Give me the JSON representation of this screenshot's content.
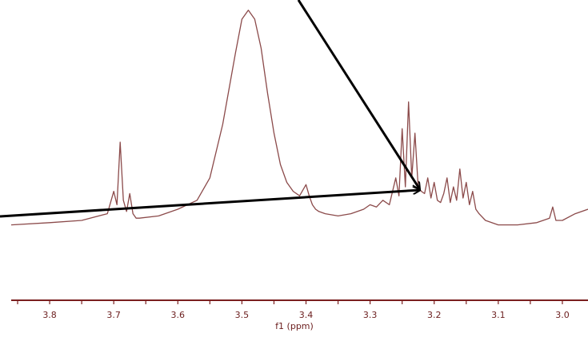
{
  "chart_data": {
    "type": "line",
    "title": "",
    "xlabel": "f1 (ppm)",
    "ylabel": "",
    "x_reversed": true,
    "xlim": [
      3.86,
      2.96
    ],
    "ylim": [
      0,
      100
    ],
    "grid": false,
    "x_ticks": [
      "3.8",
      "3.7",
      "3.6",
      "3.5",
      "3.4",
      "3.3",
      "3.2",
      "3.1",
      "3.0"
    ],
    "x_tick_values": [
      3.8,
      3.7,
      3.6,
      3.5,
      3.4,
      3.3,
      3.2,
      3.1,
      3.0
    ],
    "colors": {
      "spectrum": "#8b4a4a",
      "axis": "#7a1f1f",
      "arrows": "#000000"
    },
    "series": [
      {
        "values": {
          "x": [
            3.86,
            3.8,
            3.75,
            3.71,
            3.7,
            3.695,
            3.69,
            3.685,
            3.68,
            3.675,
            3.67,
            3.665,
            3.66,
            3.63,
            3.6,
            3.57,
            3.55,
            3.53,
            3.51,
            3.5,
            3.49,
            3.48,
            3.47,
            3.46,
            3.45,
            3.44,
            3.43,
            3.42,
            3.41,
            3.4,
            3.395,
            3.39,
            3.385,
            3.38,
            3.37,
            3.35,
            3.33,
            3.31,
            3.3,
            3.29,
            3.28,
            3.27,
            3.26,
            3.255,
            3.25,
            3.245,
            3.24,
            3.235,
            3.23,
            3.225,
            3.22,
            3.215,
            3.21,
            3.205,
            3.2,
            3.195,
            3.19,
            3.185,
            3.18,
            3.175,
            3.17,
            3.165,
            3.16,
            3.155,
            3.15,
            3.145,
            3.14,
            3.135,
            3.13,
            3.12,
            3.1,
            3.07,
            3.04,
            3.02,
            3.015,
            3.01,
            3.0,
            2.98,
            2.96
          ],
          "y": [
            3,
            4,
            5,
            8,
            18,
            12,
            40,
            14,
            9,
            17,
            8,
            6,
            6,
            7,
            10,
            14,
            24,
            48,
            80,
            95,
            99,
            95,
            82,
            62,
            44,
            30,
            22,
            18,
            16,
            21,
            16,
            12,
            10,
            9,
            8,
            7,
            8,
            10,
            12,
            11,
            14,
            12,
            24,
            16,
            46,
            20,
            58,
            24,
            44,
            20,
            18,
            17,
            24,
            15,
            22,
            14,
            13,
            17,
            24,
            13,
            20,
            14,
            28,
            15,
            22,
            12,
            18,
            10,
            8,
            5,
            3,
            3,
            4,
            6,
            11,
            5,
            5,
            8,
            10
          ]
        }
      }
    ]
  }
}
